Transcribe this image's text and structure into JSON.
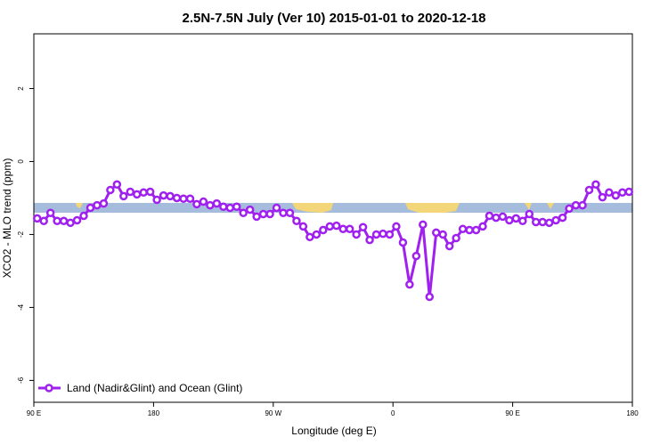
{
  "chart_data": {
    "type": "line",
    "title": "2.5N-7.5N July (Ver 10)   2015-01-01 to 2020-12-18",
    "x_label": "Longitude (deg E)",
    "y_label": "XCO2 - MLO trend (ppm)",
    "x": [
      92.5,
      97.5,
      102.5,
      107.5,
      112.5,
      117.5,
      122.5,
      127.5,
      132.5,
      137.5,
      142.5,
      147.5,
      152.5,
      157.5,
      162.5,
      167.5,
      172.5,
      177.5,
      182.5,
      187.5,
      192.5,
      197.5,
      202.5,
      207.5,
      212.5,
      217.5,
      222.5,
      227.5,
      232.5,
      237.5,
      242.5,
      247.5,
      252.5,
      257.5,
      262.5,
      267.5,
      272.5,
      277.5,
      282.5,
      287.5,
      292.5,
      297.5,
      302.5,
      307.5,
      312.5,
      317.5,
      322.5,
      327.5,
      332.5,
      337.5,
      342.5,
      347.5,
      352.5,
      357.5,
      362.5,
      367.5,
      372.5,
      377.5,
      382.5,
      387.5,
      392.5,
      397.5,
      402.5,
      407.5,
      412.5,
      417.5,
      422.5,
      427.5,
      432.5,
      437.5,
      442.5,
      447.5,
      452.5,
      457.5,
      462.5,
      467.5,
      472.5,
      477.5,
      482.5,
      487.5,
      492.5,
      497.5,
      502.5,
      507.5,
      512.5,
      517.5,
      522.5,
      527.5,
      532.5,
      537.5
    ],
    "series": [
      {
        "name": "Land (Nadir&Glint) and Ocean (Glint)",
        "color": "#a020f0",
        "values": [
          -1.56,
          -1.63,
          -1.41,
          -1.63,
          -1.63,
          -1.68,
          -1.61,
          -1.49,
          -1.27,
          -1.2,
          -1.15,
          -0.78,
          -0.63,
          -0.95,
          -0.83,
          -0.9,
          -0.85,
          -0.83,
          -1.05,
          -0.93,
          -0.95,
          -1.0,
          -1.02,
          -1.02,
          -1.17,
          -1.1,
          -1.2,
          -1.15,
          -1.24,
          -1.27,
          -1.24,
          -1.41,
          -1.32,
          -1.51,
          -1.44,
          -1.44,
          -1.27,
          -1.41,
          -1.41,
          -1.63,
          -1.78,
          -2.07,
          -2.0,
          -1.88,
          -1.78,
          -1.76,
          -1.85,
          -1.85,
          -2.0,
          -1.8,
          -2.15,
          -2.0,
          -1.98,
          -2.0,
          -1.78,
          -2.22,
          -3.37,
          -2.59,
          -1.73,
          -3.71,
          -1.95,
          -2.0,
          -2.32,
          -2.1,
          -1.85,
          -1.88,
          -1.88,
          -1.78,
          -1.49,
          -1.54,
          -1.51,
          -1.61,
          -1.56,
          -1.63,
          -1.44,
          -1.66,
          -1.66,
          -1.68,
          -1.61,
          -1.54,
          -1.29,
          -1.2,
          -1.2,
          -0.78,
          -0.63,
          -0.98,
          -0.85,
          -0.93,
          -0.85,
          -0.83
        ]
      }
    ],
    "xlim": [
      90,
      540
    ],
    "xticks": [
      {
        "value": 90,
        "label": "90 E"
      },
      180,
      {
        "value": 270,
        "label": "90 W"
      },
      {
        "value": 360,
        "label": "0"
      },
      {
        "value": 450,
        "label": "90 E"
      },
      {
        "value": 540,
        "label": "180"
      }
    ],
    "ylim": [
      -6.6,
      3.5
    ],
    "yticks": [
      2,
      0,
      -2,
      -4,
      -6
    ],
    "legend": "bottom-left"
  }
}
